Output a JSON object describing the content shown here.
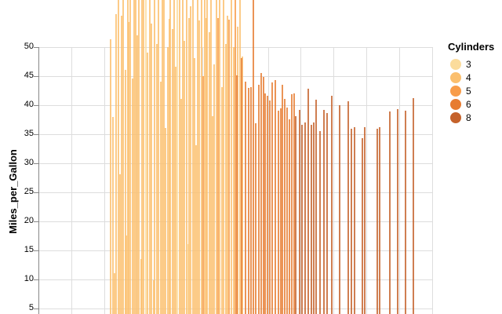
{
  "chart": {
    "y_axis": {
      "title": "Miles_per_Gallon",
      "tick_values": [
        5,
        10,
        15,
        20,
        25,
        30,
        35,
        40,
        45,
        50
      ]
    },
    "legend": {
      "title": "Cylinders",
      "items": [
        {
          "label": "3",
          "color": "#fbdc9c"
        },
        {
          "label": "4",
          "color": "#fbbf6e"
        },
        {
          "label": "5",
          "color": "#f89c49"
        },
        {
          "label": "6",
          "color": "#e77c31"
        },
        {
          "label": "8",
          "color": "#c5622b"
        }
      ]
    },
    "colors": {
      "grid": "#dddddd",
      "axis": "#888888",
      "label": "#000000",
      "background": "#ffffff"
    }
  },
  "chart_data": {
    "type": "bar",
    "mark": "rule",
    "title": "",
    "xlabel": "",
    "ylabel": "Miles_per_Gallon",
    "y_ticks": [
      5,
      10,
      15,
      20,
      25,
      30,
      35,
      40,
      45,
      50
    ],
    "y_visible_range": [
      3.9,
      58
    ],
    "grid": true,
    "legend_position": "right",
    "color_field": "Cylinders",
    "color_domain": [
      3,
      4,
      5,
      6,
      8
    ],
    "note": "Vertical rules rise from below the cropped bottom edge up to the listed value; x-axis is cropped out of view so x is given in canvas pixels; values >= 58 are cut by the top edge.",
    "lines": [
      [
        141,
        51.3,
        4
      ],
      [
        144,
        37.9,
        4
      ],
      [
        146,
        11,
        4
      ],
      [
        148,
        55.6,
        4
      ],
      [
        151,
        60,
        4
      ],
      [
        153,
        28,
        4
      ],
      [
        155,
        55.4,
        4
      ],
      [
        157,
        60,
        4
      ],
      [
        160,
        46,
        4
      ],
      [
        161,
        17.5,
        4
      ],
      [
        163,
        60,
        4
      ],
      [
        164,
        54.2,
        4
      ],
      [
        166,
        59,
        4
      ],
      [
        169,
        44.5,
        4
      ],
      [
        171,
        61,
        4
      ],
      [
        173,
        60,
        4
      ],
      [
        175,
        52,
        4
      ],
      [
        177,
        60,
        4
      ],
      [
        180,
        13.4,
        4
      ],
      [
        181,
        59,
        4
      ],
      [
        183,
        61,
        4
      ],
      [
        186,
        60,
        3
      ],
      [
        188,
        49,
        4
      ],
      [
        191,
        60,
        4
      ],
      [
        193,
        54,
        4
      ],
      [
        196,
        9.8,
        4
      ],
      [
        197,
        62,
        4
      ],
      [
        200,
        50.5,
        4
      ],
      [
        202,
        60,
        4
      ],
      [
        205,
        44,
        4
      ],
      [
        207,
        61,
        4
      ],
      [
        209,
        58.5,
        4
      ],
      [
        211,
        36,
        4
      ],
      [
        214,
        50,
        4
      ],
      [
        216,
        54.8,
        4
      ],
      [
        217,
        62,
        4
      ],
      [
        220,
        53,
        4
      ],
      [
        222,
        60,
        4
      ],
      [
        224,
        46.5,
        4
      ],
      [
        226,
        61,
        3
      ],
      [
        229,
        59.5,
        4
      ],
      [
        231,
        41,
        4
      ],
      [
        233,
        61,
        4
      ],
      [
        235,
        51,
        4
      ],
      [
        238,
        60,
        4
      ],
      [
        240,
        16,
        3
      ],
      [
        241,
        55,
        4
      ],
      [
        243,
        57,
        4
      ],
      [
        246,
        62,
        4
      ],
      [
        248,
        48,
        4
      ],
      [
        250,
        33,
        4
      ],
      [
        252,
        60,
        4
      ],
      [
        254,
        54.5,
        4
      ],
      [
        257,
        61,
        4
      ],
      [
        259,
        45,
        5
      ],
      [
        261,
        60,
        4
      ],
      [
        263,
        55,
        4
      ],
      [
        264,
        59,
        4
      ],
      [
        267,
        52.5,
        4
      ],
      [
        269,
        60,
        4
      ],
      [
        271,
        38,
        4
      ],
      [
        273,
        47,
        4
      ],
      [
        276,
        61,
        4
      ],
      [
        278,
        55,
        5
      ],
      [
        280,
        59,
        4
      ],
      [
        283,
        43,
        4
      ],
      [
        285,
        60,
        4
      ],
      [
        288,
        50.5,
        4
      ],
      [
        290,
        55.3,
        4
      ],
      [
        292,
        54.6,
        5
      ],
      [
        295,
        61,
        4
      ],
      [
        298,
        49.9,
        4
      ],
      [
        300,
        59,
        5
      ],
      [
        303,
        53.5,
        4
      ],
      [
        306,
        60,
        4
      ],
      [
        309,
        48.3,
        4
      ],
      [
        302,
        45.1,
        6
      ],
      [
        308,
        48.1,
        6
      ],
      [
        313,
        44,
        6
      ],
      [
        317,
        42.9,
        6
      ],
      [
        320,
        43.1,
        6
      ],
      [
        323,
        60,
        6
      ],
      [
        326,
        36.8,
        6
      ],
      [
        330,
        43.4,
        6
      ],
      [
        333,
        45.5,
        6
      ],
      [
        336,
        44.8,
        6
      ],
      [
        338,
        42,
        6
      ],
      [
        341,
        41.5,
        6
      ],
      [
        344,
        40.7,
        6
      ],
      [
        347,
        43.8,
        6
      ],
      [
        351,
        44.2,
        6
      ],
      [
        355,
        39,
        6
      ],
      [
        358,
        39.4,
        6
      ],
      [
        360,
        43.5,
        6
      ],
      [
        363,
        41,
        6
      ],
      [
        366,
        39.5,
        6
      ],
      [
        369,
        37.5,
        6
      ],
      [
        372,
        41.8,
        6
      ],
      [
        375,
        42,
        6
      ],
      [
        377,
        38,
        8
      ],
      [
        382,
        39.1,
        8
      ],
      [
        385,
        36.5,
        8
      ],
      [
        389,
        37,
        8
      ],
      [
        393,
        42.8,
        8
      ],
      [
        397,
        36.6,
        8
      ],
      [
        400,
        36.9,
        8
      ],
      [
        403,
        40.9,
        8
      ],
      [
        408,
        35.5,
        8
      ],
      [
        413,
        39.1,
        8
      ],
      [
        417,
        38.6,
        8
      ],
      [
        423,
        41.6,
        8
      ],
      [
        433,
        39.9,
        8
      ],
      [
        444,
        40.6,
        8
      ],
      [
        448,
        35.9,
        8
      ],
      [
        452,
        36.1,
        8
      ],
      [
        462,
        34.2,
        8
      ],
      [
        465,
        36.2,
        8
      ],
      [
        481,
        35.9,
        8
      ],
      [
        484,
        36.1,
        8
      ],
      [
        497,
        38.8,
        8
      ],
      [
        507,
        39.2,
        8
      ],
      [
        517,
        39,
        8
      ],
      [
        527,
        41.1,
        8
      ]
    ]
  }
}
